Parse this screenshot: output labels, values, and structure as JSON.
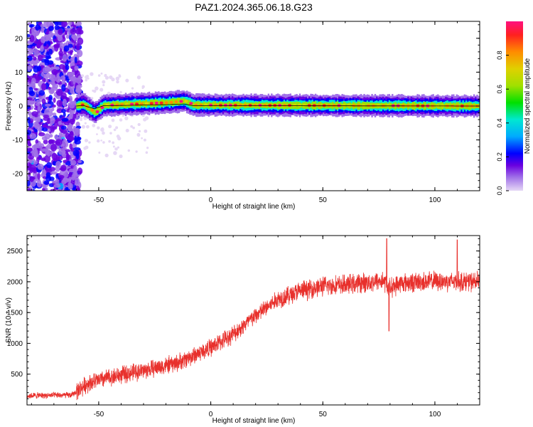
{
  "title": "PAZ1.2024.365.06.18.G23",
  "colors": {
    "snr_line": "#e8302c",
    "ridge_line": "#000000",
    "frame": "#000000",
    "cmap": [
      "#e6d8f5",
      "#a070e8",
      "#6a00e0",
      "#0000ff",
      "#00aaff",
      "#00e8d0",
      "#00e000",
      "#a0e000",
      "#e0d000",
      "#ff8c00",
      "#ff2020",
      "#ff1080"
    ]
  },
  "chart_data": [
    {
      "type": "heatmap",
      "title": "PAZ1.2024.365.06.18.G23",
      "xlabel": "Height of straight line (km)",
      "ylabel": "Frequency (Hz)",
      "xlim": [
        -82,
        120
      ],
      "ylim": [
        -25,
        25
      ],
      "xticks": [
        -50,
        0,
        50,
        100
      ],
      "yticks": [
        -20,
        -10,
        0,
        10,
        20
      ],
      "grid": false,
      "colorbar": {
        "label": "Normalized spectral amplitude",
        "range": [
          0,
          1
        ],
        "ticks": [
          0.0,
          0.2,
          0.4,
          0.6,
          0.8
        ]
      },
      "ridge": {
        "frequency_hz": 0,
        "start_km": -60,
        "profile": [
          {
            "x": -60,
            "y": 0.0
          },
          {
            "x": -57,
            "y": 0.5
          },
          {
            "x": -52,
            "y": -2.0
          },
          {
            "x": -48,
            "y": 0.2
          },
          {
            "x": -20,
            "y": 1.0
          },
          {
            "x": -12,
            "y": 1.5
          },
          {
            "x": -8,
            "y": 0.3
          },
          {
            "x": 120,
            "y": 0.0
          }
        ]
      },
      "noise_region": {
        "x_range": [
          -82,
          -58
        ],
        "amplitude_range": [
          0.2,
          0.6
        ]
      }
    },
    {
      "type": "line",
      "xlabel": "Height of straight line (km)",
      "ylabel": "SNR (10 * v/v)",
      "xlim": [
        -82,
        120
      ],
      "ylim": [
        0,
        2750
      ],
      "xticks": [
        -50,
        0,
        50,
        100
      ],
      "yticks": [
        500,
        1000,
        1500,
        2000,
        2500
      ],
      "grid": false,
      "series": [
        {
          "trend": [
            {
              "x": -82,
              "y": 150
            },
            {
              "x": -62,
              "y": 160
            },
            {
              "x": -55,
              "y": 350
            },
            {
              "x": -45,
              "y": 450
            },
            {
              "x": -30,
              "y": 560
            },
            {
              "x": -15,
              "y": 680
            },
            {
              "x": 0,
              "y": 930
            },
            {
              "x": 10,
              "y": 1150
            },
            {
              "x": 20,
              "y": 1450
            },
            {
              "x": 30,
              "y": 1720
            },
            {
              "x": 40,
              "y": 1850
            },
            {
              "x": 50,
              "y": 1930
            },
            {
              "x": 60,
              "y": 1950
            },
            {
              "x": 70,
              "y": 1990
            },
            {
              "x": 77,
              "y": 2020
            },
            {
              "x": 80,
              "y": 1900
            },
            {
              "x": 85,
              "y": 1980
            },
            {
              "x": 100,
              "y": 2010
            },
            {
              "x": 120,
              "y": 2000
            }
          ],
          "spikes": [
            {
              "x": 78.5,
              "y": 2700
            },
            {
              "x": 79.5,
              "y": 1200
            },
            {
              "x": 110,
              "y": 2680
            }
          ]
        }
      ]
    }
  ]
}
